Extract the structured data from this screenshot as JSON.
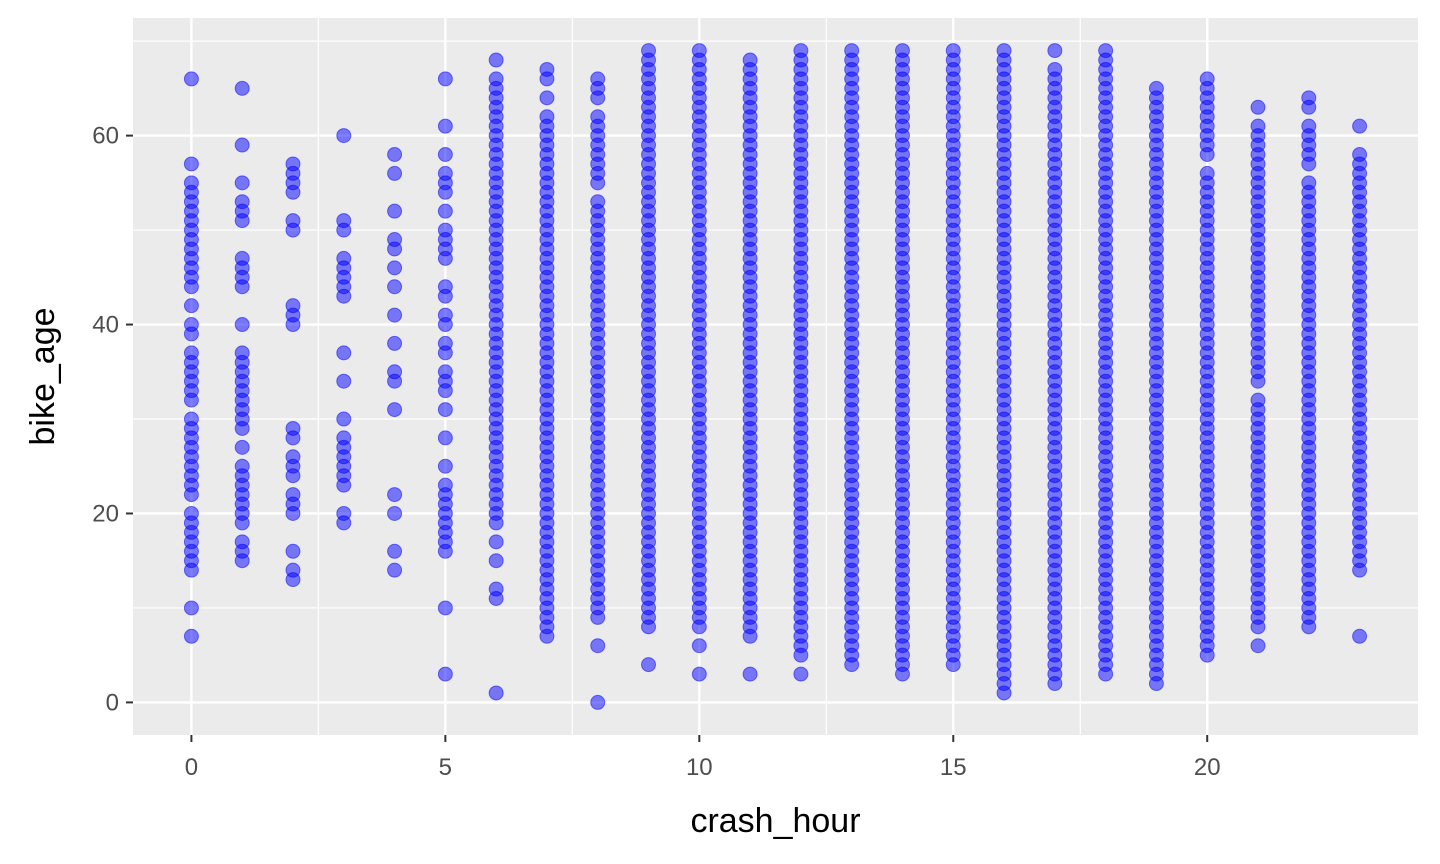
{
  "chart_data": {
    "type": "scatter",
    "title": "",
    "xlabel": "crash_hour",
    "ylabel": "bike_age",
    "xlim": [
      -1.15,
      24.15
    ],
    "ylim": [
      -3.45,
      72.45
    ],
    "x_ticks": [
      0,
      5,
      10,
      15,
      20
    ],
    "x_tick_labels": [
      "0",
      "5",
      "10",
      "15",
      "20"
    ],
    "y_ticks": [
      0,
      20,
      40,
      60
    ],
    "y_tick_labels": [
      "0",
      "20",
      "40",
      "60"
    ],
    "grid": true,
    "panel_background": "#ebebeb",
    "grid_color": "#ffffff",
    "point_color": "#0000ff",
    "point_opacity": 0.5,
    "columns": [
      {
        "x": 0,
        "ages": [
          66,
          57,
          55,
          54,
          53,
          52,
          51,
          50,
          49,
          48,
          47,
          46,
          45,
          44,
          42,
          40,
          39,
          37,
          36,
          35,
          34,
          33,
          32,
          30,
          29,
          28,
          27,
          26,
          25,
          24,
          23,
          22,
          20,
          19,
          18,
          17,
          16,
          15,
          14,
          10,
          7
        ]
      },
      {
        "x": 1,
        "ages": [
          65,
          59,
          55,
          53,
          52,
          51,
          47,
          46,
          45,
          44,
          40,
          37,
          36,
          35,
          34,
          33,
          32,
          31,
          30,
          29,
          27,
          25,
          24,
          23,
          22,
          21,
          20,
          19,
          17,
          16,
          15
        ]
      },
      {
        "x": 2,
        "ages": [
          57,
          56,
          55,
          54,
          51,
          50,
          42,
          41,
          40,
          29,
          28,
          26,
          25,
          24,
          22,
          21,
          20,
          16,
          14,
          13
        ]
      },
      {
        "x": 3,
        "ages": [
          60,
          51,
          50,
          47,
          46,
          45,
          44,
          43,
          37,
          34,
          30,
          28,
          27,
          26,
          25,
          24,
          23,
          20,
          19
        ]
      },
      {
        "x": 4,
        "ages": [
          58,
          56,
          52,
          49,
          48,
          46,
          44,
          41,
          38,
          35,
          34,
          31,
          22,
          20,
          16,
          14
        ]
      },
      {
        "x": 5,
        "ages": [
          66,
          61,
          58,
          56,
          55,
          54,
          52,
          50,
          49,
          48,
          47,
          44,
          43,
          41,
          40,
          38,
          37,
          35,
          34,
          33,
          31,
          28,
          25,
          23,
          22,
          21,
          20,
          19,
          18,
          17,
          16,
          10,
          3
        ]
      },
      {
        "x": 6,
        "ages": [
          68,
          66,
          65,
          64,
          63,
          62,
          61,
          60,
          59,
          58,
          57,
          56,
          55,
          54,
          53,
          52,
          51,
          50,
          49,
          48,
          47,
          46,
          45,
          44,
          43,
          42,
          41,
          40,
          39,
          38,
          37,
          36,
          35,
          34,
          33,
          32,
          31,
          30,
          29,
          28,
          27,
          26,
          25,
          24,
          23,
          22,
          21,
          20,
          19,
          17,
          15,
          12,
          11,
          1
        ]
      },
      {
        "x": 7,
        "ages": [
          67,
          66,
          64,
          62,
          61,
          60,
          59,
          58,
          57,
          56,
          55,
          54,
          53,
          52,
          51,
          50,
          49,
          48,
          47,
          46,
          45,
          44,
          43,
          42,
          41,
          40,
          39,
          38,
          37,
          36,
          35,
          34,
          33,
          32,
          31,
          30,
          29,
          28,
          27,
          26,
          25,
          24,
          23,
          22,
          21,
          20,
          19,
          18,
          17,
          16,
          15,
          14,
          13,
          12,
          11,
          10,
          9,
          8,
          7
        ]
      },
      {
        "x": 8,
        "ages": [
          66,
          65,
          64,
          62,
          61,
          60,
          59,
          58,
          57,
          56,
          55,
          53,
          52,
          51,
          50,
          49,
          48,
          47,
          46,
          45,
          44,
          43,
          42,
          41,
          40,
          39,
          38,
          37,
          36,
          35,
          34,
          33,
          32,
          31,
          30,
          29,
          28,
          27,
          26,
          25,
          24,
          23,
          22,
          21,
          20,
          19,
          18,
          17,
          16,
          15,
          14,
          13,
          12,
          11,
          10,
          9,
          6,
          0
        ]
      },
      {
        "x": 9,
        "ages": [
          69,
          68,
          67,
          66,
          65,
          64,
          63,
          62,
          61,
          60,
          59,
          58,
          57,
          56,
          55,
          54,
          53,
          52,
          51,
          50,
          49,
          48,
          47,
          46,
          45,
          44,
          43,
          42,
          41,
          40,
          39,
          38,
          37,
          36,
          35,
          34,
          33,
          32,
          31,
          30,
          29,
          28,
          27,
          26,
          25,
          24,
          23,
          22,
          21,
          20,
          19,
          18,
          17,
          16,
          15,
          14,
          13,
          12,
          11,
          10,
          9,
          8,
          4
        ]
      },
      {
        "x": 10,
        "ages": [
          69,
          68,
          67,
          66,
          65,
          64,
          63,
          62,
          61,
          60,
          59,
          58,
          57,
          56,
          55,
          54,
          53,
          52,
          51,
          50,
          49,
          48,
          47,
          46,
          45,
          44,
          43,
          42,
          41,
          40,
          39,
          38,
          37,
          36,
          35,
          34,
          33,
          32,
          31,
          30,
          29,
          28,
          27,
          26,
          25,
          24,
          23,
          22,
          21,
          20,
          19,
          18,
          17,
          16,
          15,
          14,
          13,
          12,
          11,
          10,
          9,
          8,
          6,
          3
        ]
      },
      {
        "x": 11,
        "ages": [
          68,
          67,
          66,
          65,
          64,
          63,
          62,
          61,
          60,
          59,
          58,
          57,
          56,
          55,
          54,
          53,
          52,
          51,
          50,
          49,
          48,
          47,
          46,
          45,
          44,
          43,
          42,
          41,
          40,
          39,
          38,
          37,
          36,
          35,
          34,
          33,
          32,
          31,
          30,
          29,
          28,
          27,
          26,
          25,
          24,
          23,
          22,
          21,
          20,
          19,
          18,
          17,
          16,
          15,
          14,
          13,
          12,
          11,
          10,
          9,
          8,
          7,
          3
        ]
      },
      {
        "x": 12,
        "ages": [
          69,
          68,
          67,
          66,
          65,
          64,
          63,
          62,
          61,
          60,
          59,
          58,
          57,
          56,
          55,
          54,
          53,
          52,
          51,
          50,
          49,
          48,
          47,
          46,
          45,
          44,
          43,
          42,
          41,
          40,
          39,
          38,
          37,
          36,
          35,
          34,
          33,
          32,
          31,
          30,
          29,
          28,
          27,
          26,
          25,
          24,
          23,
          22,
          21,
          20,
          19,
          18,
          17,
          16,
          15,
          14,
          13,
          12,
          11,
          10,
          9,
          8,
          7,
          6,
          5,
          3
        ]
      },
      {
        "x": 13,
        "ages": [
          69,
          68,
          67,
          66,
          65,
          64,
          63,
          62,
          61,
          60,
          59,
          58,
          57,
          56,
          55,
          54,
          53,
          52,
          51,
          50,
          49,
          48,
          47,
          46,
          45,
          44,
          43,
          42,
          41,
          40,
          39,
          38,
          37,
          36,
          35,
          34,
          33,
          32,
          31,
          30,
          29,
          28,
          27,
          26,
          25,
          24,
          23,
          22,
          21,
          20,
          19,
          18,
          17,
          16,
          15,
          14,
          13,
          12,
          11,
          10,
          9,
          8,
          7,
          6,
          5,
          4
        ]
      },
      {
        "x": 14,
        "ages": [
          69,
          68,
          67,
          66,
          65,
          64,
          63,
          62,
          61,
          60,
          59,
          58,
          57,
          56,
          55,
          54,
          53,
          52,
          51,
          50,
          49,
          48,
          47,
          46,
          45,
          44,
          43,
          42,
          41,
          40,
          39,
          38,
          37,
          36,
          35,
          34,
          33,
          32,
          31,
          30,
          29,
          28,
          27,
          26,
          25,
          24,
          23,
          22,
          21,
          20,
          19,
          18,
          17,
          16,
          15,
          14,
          13,
          12,
          11,
          10,
          9,
          8,
          7,
          6,
          5,
          4,
          3
        ]
      },
      {
        "x": 15,
        "ages": [
          69,
          68,
          67,
          66,
          65,
          64,
          63,
          62,
          61,
          60,
          59,
          58,
          57,
          56,
          55,
          54,
          53,
          52,
          51,
          50,
          49,
          48,
          47,
          46,
          45,
          44,
          43,
          42,
          41,
          40,
          39,
          38,
          37,
          36,
          35,
          34,
          33,
          32,
          31,
          30,
          29,
          28,
          27,
          26,
          25,
          24,
          23,
          22,
          21,
          20,
          19,
          18,
          17,
          16,
          15,
          14,
          13,
          12,
          11,
          10,
          9,
          8,
          7,
          6,
          5,
          4
        ]
      },
      {
        "x": 16,
        "ages": [
          69,
          68,
          67,
          66,
          65,
          64,
          63,
          62,
          61,
          60,
          59,
          58,
          57,
          56,
          55,
          54,
          53,
          52,
          51,
          50,
          49,
          48,
          47,
          46,
          45,
          44,
          43,
          42,
          41,
          40,
          39,
          38,
          37,
          36,
          35,
          34,
          33,
          32,
          31,
          30,
          29,
          28,
          27,
          26,
          25,
          24,
          23,
          22,
          21,
          20,
          19,
          18,
          17,
          16,
          15,
          14,
          13,
          12,
          11,
          10,
          9,
          8,
          7,
          6,
          5,
          4,
          3,
          2,
          1
        ]
      },
      {
        "x": 17,
        "ages": [
          69,
          67,
          66,
          65,
          64,
          63,
          62,
          61,
          60,
          59,
          58,
          57,
          56,
          55,
          54,
          53,
          52,
          51,
          50,
          49,
          48,
          47,
          46,
          45,
          44,
          43,
          42,
          41,
          40,
          39,
          38,
          37,
          36,
          35,
          34,
          33,
          32,
          31,
          30,
          29,
          28,
          27,
          26,
          25,
          24,
          23,
          22,
          21,
          20,
          19,
          18,
          17,
          16,
          15,
          14,
          13,
          12,
          11,
          10,
          9,
          8,
          7,
          6,
          5,
          4,
          3,
          2
        ]
      },
      {
        "x": 18,
        "ages": [
          69,
          68,
          67,
          66,
          65,
          64,
          63,
          62,
          61,
          60,
          59,
          58,
          57,
          56,
          55,
          54,
          53,
          52,
          51,
          50,
          49,
          48,
          47,
          46,
          45,
          44,
          43,
          42,
          41,
          40,
          39,
          38,
          37,
          36,
          35,
          34,
          33,
          32,
          31,
          30,
          29,
          28,
          27,
          26,
          25,
          24,
          23,
          22,
          21,
          20,
          19,
          18,
          17,
          16,
          15,
          14,
          13,
          12,
          11,
          10,
          9,
          8,
          7,
          6,
          5,
          4,
          3
        ]
      },
      {
        "x": 19,
        "ages": [
          65,
          64,
          63,
          62,
          61,
          60,
          59,
          58,
          57,
          56,
          55,
          54,
          53,
          52,
          51,
          50,
          49,
          48,
          47,
          46,
          45,
          44,
          43,
          42,
          41,
          40,
          39,
          38,
          37,
          36,
          35,
          34,
          33,
          32,
          31,
          30,
          29,
          28,
          27,
          26,
          25,
          24,
          23,
          22,
          21,
          20,
          19,
          18,
          17,
          16,
          15,
          14,
          13,
          12,
          11,
          10,
          9,
          8,
          7,
          6,
          5,
          4,
          3,
          2
        ]
      },
      {
        "x": 20,
        "ages": [
          66,
          65,
          64,
          63,
          62,
          61,
          60,
          59,
          58,
          56,
          55,
          54,
          53,
          52,
          51,
          50,
          49,
          48,
          47,
          46,
          45,
          44,
          43,
          42,
          41,
          40,
          39,
          38,
          37,
          36,
          35,
          34,
          33,
          32,
          31,
          30,
          29,
          28,
          27,
          26,
          25,
          24,
          23,
          22,
          21,
          20,
          19,
          18,
          17,
          16,
          15,
          14,
          13,
          12,
          11,
          10,
          9,
          8,
          7,
          6,
          5
        ]
      },
      {
        "x": 21,
        "ages": [
          63,
          61,
          60,
          59,
          58,
          57,
          56,
          55,
          54,
          53,
          52,
          51,
          50,
          49,
          48,
          47,
          46,
          45,
          44,
          43,
          42,
          41,
          40,
          39,
          38,
          37,
          36,
          35,
          34,
          32,
          31,
          30,
          29,
          28,
          27,
          26,
          25,
          24,
          23,
          22,
          21,
          20,
          19,
          18,
          17,
          16,
          15,
          14,
          13,
          12,
          11,
          10,
          9,
          8,
          6
        ]
      },
      {
        "x": 22,
        "ages": [
          64,
          63,
          61,
          60,
          59,
          58,
          57,
          55,
          54,
          53,
          52,
          51,
          50,
          49,
          48,
          47,
          46,
          45,
          44,
          43,
          42,
          41,
          40,
          39,
          38,
          37,
          36,
          35,
          34,
          33,
          32,
          31,
          30,
          29,
          28,
          27,
          26,
          25,
          24,
          23,
          22,
          21,
          20,
          19,
          18,
          17,
          16,
          15,
          14,
          13,
          12,
          11,
          10,
          9,
          8
        ]
      },
      {
        "x": 23,
        "ages": [
          61,
          58,
          57,
          56,
          55,
          54,
          53,
          52,
          51,
          50,
          49,
          48,
          47,
          46,
          45,
          44,
          43,
          42,
          41,
          40,
          39,
          38,
          37,
          36,
          35,
          34,
          33,
          32,
          31,
          30,
          29,
          28,
          27,
          26,
          25,
          24,
          23,
          22,
          21,
          20,
          19,
          18,
          17,
          16,
          15,
          14,
          7
        ]
      }
    ]
  }
}
